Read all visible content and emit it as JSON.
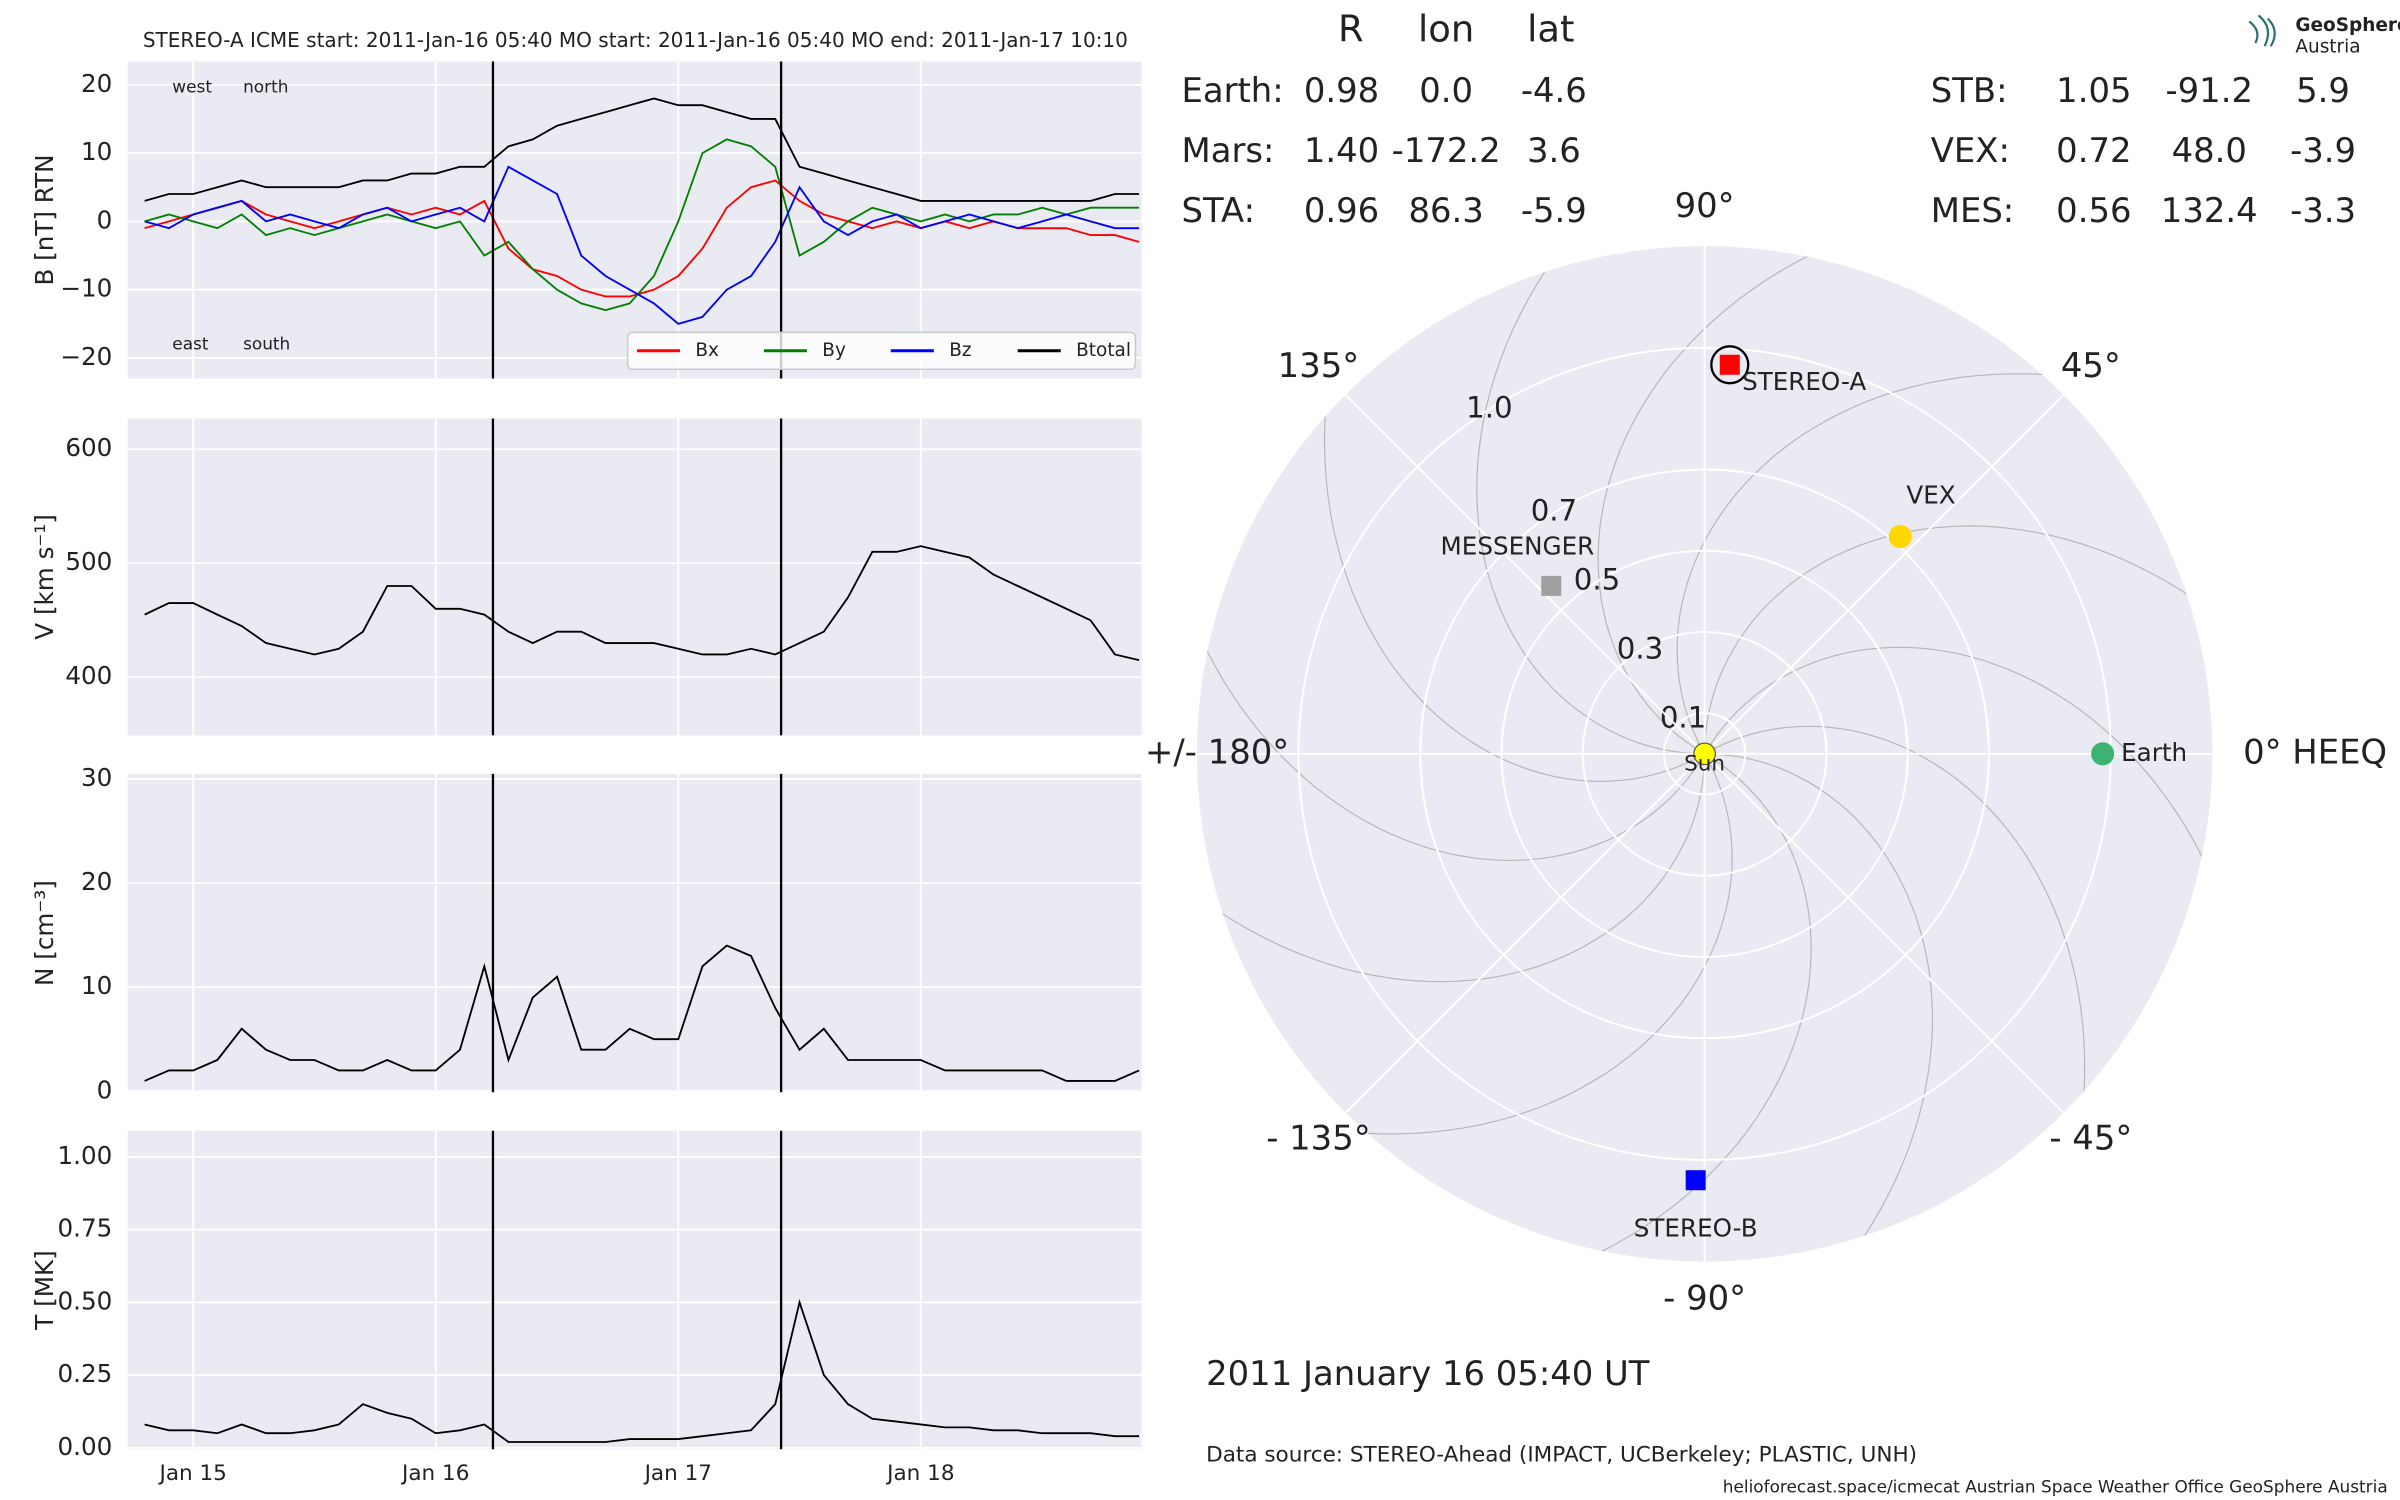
{
  "logo": {
    "line1": "GeoSphere",
    "line2": "Austria"
  },
  "date_label": "2011 January 16  05:40 UT",
  "data_source": "Data source: STEREO-Ahead (IMPACT, UCBerkeley; PLASTIC, UNH)",
  "footer": "helioforecast.space/icmecat   Austrian Space Weather Office   GeoSphere Austria",
  "chart_data": [
    {
      "type": "line",
      "title": "STEREO-A    ICME start: 2011-Jan-16 05:40    MO start: 2011-Jan-16 05:40    MO end: 2011-Jan-17 10:10",
      "ylabel": "B [nT] RTN",
      "x": [
        14.8,
        14.9,
        15.0,
        15.1,
        15.2,
        15.3,
        15.4,
        15.5,
        15.6,
        15.7,
        15.8,
        15.9,
        16.0,
        16.1,
        16.2,
        16.3,
        16.4,
        16.5,
        16.6,
        16.7,
        16.8,
        16.9,
        17.0,
        17.1,
        17.2,
        17.3,
        17.4,
        17.5,
        17.6,
        17.7,
        17.8,
        17.9,
        18.0,
        18.1,
        18.2,
        18.3,
        18.4,
        18.5,
        18.6,
        18.7,
        18.8,
        18.9
      ],
      "series": [
        {
          "name": "Bx",
          "color": "#ff0000",
          "values": [
            -1,
            0,
            1,
            2,
            3,
            1,
            0,
            -1,
            0,
            1,
            2,
            1,
            2,
            1,
            3,
            -4,
            -7,
            -8,
            -10,
            -11,
            -11,
            -10,
            -8,
            -4,
            2,
            5,
            6,
            3,
            1,
            0,
            -1,
            0,
            -1,
            0,
            -1,
            0,
            -1,
            -1,
            -1,
            -2,
            -2,
            -3
          ]
        },
        {
          "name": "By",
          "color": "#008000",
          "values": [
            0,
            1,
            0,
            -1,
            1,
            -2,
            -1,
            -2,
            -1,
            0,
            1,
            0,
            -1,
            0,
            -5,
            -3,
            -7,
            -10,
            -12,
            -13,
            -12,
            -8,
            0,
            10,
            12,
            11,
            8,
            -5,
            -3,
            0,
            2,
            1,
            0,
            1,
            0,
            1,
            1,
            2,
            1,
            2,
            2,
            2
          ]
        },
        {
          "name": "Bz",
          "color": "#0000ff",
          "values": [
            0,
            -1,
            1,
            2,
            3,
            0,
            1,
            0,
            -1,
            1,
            2,
            0,
            1,
            2,
            0,
            8,
            6,
            4,
            -5,
            -8,
            -10,
            -12,
            -15,
            -14,
            -10,
            -8,
            -3,
            5,
            0,
            -2,
            0,
            1,
            -1,
            0,
            1,
            0,
            -1,
            0,
            1,
            0,
            -1,
            -1
          ]
        },
        {
          "name": "Btotal",
          "color": "#000000",
          "values": [
            3,
            4,
            4,
            5,
            6,
            5,
            5,
            5,
            5,
            6,
            6,
            7,
            7,
            8,
            8,
            11,
            12,
            14,
            15,
            16,
            17,
            18,
            17,
            17,
            16,
            15,
            15,
            8,
            7,
            6,
            5,
            4,
            3,
            3,
            3,
            3,
            3,
            3,
            3,
            3,
            4,
            4
          ]
        }
      ],
      "xlim": [
        14.73,
        18.91
      ],
      "ylim": [
        -23,
        23.4
      ],
      "yticks": [
        {
          "value": -20,
          "label": "−20"
        },
        {
          "value": -10,
          "label": "−10"
        },
        0,
        10,
        20
      ],
      "xticks": [
        15,
        16,
        17,
        18
      ],
      "vlines": [
        16.236,
        17.424
      ],
      "grid": true,
      "legend": "lower right",
      "annotations": [
        {
          "text": "west",
          "color": "#008000"
        },
        {
          "text": "north",
          "color": "#0000ff"
        },
        {
          "text": "east",
          "color": "#008000"
        },
        {
          "text": "south",
          "color": "#0000ff"
        }
      ]
    },
    {
      "type": "line",
      "ylabel": "V [km s⁻¹]",
      "color": "#000000",
      "x": [
        14.8,
        14.9,
        15.0,
        15.1,
        15.2,
        15.3,
        15.4,
        15.5,
        15.6,
        15.7,
        15.8,
        15.9,
        16.0,
        16.1,
        16.2,
        16.3,
        16.4,
        16.5,
        16.6,
        16.7,
        16.8,
        16.9,
        17.0,
        17.1,
        17.2,
        17.3,
        17.4,
        17.5,
        17.6,
        17.7,
        17.8,
        17.9,
        18.0,
        18.1,
        18.2,
        18.3,
        18.4,
        18.5,
        18.6,
        18.7,
        18.8,
        18.9
      ],
      "values": [
        455,
        465,
        465,
        455,
        445,
        430,
        425,
        420,
        425,
        440,
        480,
        480,
        460,
        460,
        455,
        440,
        430,
        440,
        440,
        430,
        430,
        430,
        425,
        420,
        420,
        425,
        420,
        430,
        440,
        470,
        510,
        510,
        515,
        510,
        505,
        490,
        480,
        470,
        460,
        450,
        420,
        415
      ],
      "xlim": [
        14.73,
        18.91
      ],
      "ylim": [
        349,
        627
      ],
      "yticks": [
        400,
        500,
        600
      ],
      "xticks": [
        15,
        16,
        17,
        18
      ],
      "vlines": [
        16.236,
        17.424
      ],
      "grid": true
    },
    {
      "type": "line",
      "ylabel": "N [cm⁻³]",
      "color": "#000000",
      "x": [
        14.8,
        14.9,
        15.0,
        15.1,
        15.2,
        15.3,
        15.4,
        15.5,
        15.6,
        15.7,
        15.8,
        15.9,
        16.0,
        16.1,
        16.2,
        16.3,
        16.4,
        16.5,
        16.6,
        16.7,
        16.8,
        16.9,
        17.0,
        17.1,
        17.2,
        17.3,
        17.4,
        17.5,
        17.6,
        17.7,
        17.8,
        17.9,
        18.0,
        18.1,
        18.2,
        18.3,
        18.4,
        18.5,
        18.6,
        18.7,
        18.8,
        18.9
      ],
      "values": [
        1,
        2,
        2,
        3,
        6,
        4,
        3,
        3,
        2,
        2,
        3,
        2,
        2,
        4,
        12,
        3,
        9,
        11,
        4,
        4,
        6,
        5,
        5,
        12,
        14,
        13,
        8,
        4,
        6,
        3,
        3,
        3,
        3,
        2,
        2,
        2,
        2,
        2,
        1,
        1,
        1,
        2
      ],
      "xlim": [
        14.73,
        18.91
      ],
      "ylim": [
        -0.1,
        30.5
      ],
      "yticks": [
        0,
        10,
        20,
        30
      ],
      "xticks": [
        15,
        16,
        17,
        18
      ],
      "vlines": [
        16.236,
        17.424
      ],
      "grid": true
    },
    {
      "type": "line",
      "ylabel": "T [MK]",
      "color": "#000000",
      "x": [
        14.8,
        14.9,
        15.0,
        15.1,
        15.2,
        15.3,
        15.4,
        15.5,
        15.6,
        15.7,
        15.8,
        15.9,
        16.0,
        16.1,
        16.2,
        16.3,
        16.4,
        16.5,
        16.6,
        16.7,
        16.8,
        16.9,
        17.0,
        17.1,
        17.2,
        17.3,
        17.4,
        17.5,
        17.6,
        17.7,
        17.8,
        17.9,
        18.0,
        18.1,
        18.2,
        18.3,
        18.4,
        18.5,
        18.6,
        18.7,
        18.8,
        18.9
      ],
      "values": [
        0.08,
        0.06,
        0.06,
        0.05,
        0.08,
        0.05,
        0.05,
        0.06,
        0.08,
        0.15,
        0.12,
        0.1,
        0.05,
        0.06,
        0.08,
        0.02,
        0.02,
        0.02,
        0.02,
        0.02,
        0.03,
        0.03,
        0.03,
        0.04,
        0.05,
        0.06,
        0.15,
        0.5,
        0.25,
        0.15,
        0.1,
        0.09,
        0.08,
        0.07,
        0.07,
        0.06,
        0.06,
        0.05,
        0.05,
        0.05,
        0.04,
        0.04
      ],
      "xlim": [
        14.73,
        18.91
      ],
      "ylim": [
        -0.005,
        1.09
      ],
      "yticks": [
        {
          "value": 0,
          "label": "0.00"
        },
        {
          "value": 0.25,
          "label": "0.25"
        },
        {
          "value": 0.5,
          "label": "0.50"
        },
        {
          "value": 0.75,
          "label": "0.75"
        },
        {
          "value": 1,
          "label": "1.00"
        }
      ],
      "xticks": [
        {
          "value": 15,
          "label": "Jan 15"
        },
        {
          "value": 16,
          "label": "Jan 16"
        },
        {
          "value": 17,
          "label": "Jan 17"
        },
        {
          "value": 18,
          "label": "Jan 18"
        }
      ],
      "vlines": [
        16.236,
        17.424
      ],
      "grid": true
    },
    {
      "type": "polar",
      "header": [
        "R",
        "lon",
        "lat"
      ],
      "rlim": [
        0,
        1.25
      ],
      "rticks": [
        0.1,
        0.3,
        0.5,
        0.7,
        {
          "value": 1,
          "label": "1.0"
        }
      ],
      "thetaticks": [
        {
          "value": 90,
          "label": "90°"
        },
        {
          "value": 45,
          "label": "45°"
        },
        {
          "value": 0,
          "label": "0° HEEQ"
        },
        {
          "value": -45,
          "label": "- 45°"
        },
        {
          "value": -90,
          "label": "- 90°"
        },
        {
          "value": -135,
          "label": "- 135°"
        },
        {
          "value": 180,
          "label": "+/- 180°"
        },
        {
          "value": 135,
          "label": "135°"
        }
      ],
      "sun_label": "Sun",
      "bodies": [
        {
          "name": "Earth:",
          "color": "#3cb371",
          "values": [
            0.98,
            0,
            -4.6
          ],
          "value_labels": [
            "0.98",
            "0.0",
            "-4.6"
          ],
          "marker": "circle",
          "marker_color": "#3cb371",
          "marker_label": "Earth"
        },
        {
          "name": "Mars:",
          "color": "#ff6347",
          "values": [
            1.4,
            -172.2,
            3.6
          ],
          "value_labels": [
            "1.40",
            "-172.2",
            "3.6"
          ]
        },
        {
          "name": "STA:",
          "color": "#ff0000",
          "values": [
            0.96,
            86.3,
            -5.9
          ],
          "value_labels": [
            "0.96",
            "86.3",
            "-5.9"
          ],
          "marker": "square",
          "marker_color": "#ff0000",
          "marker_label": "STEREO-A",
          "ring": true
        },
        {
          "name": "STB:",
          "color": "#0000ff",
          "values": [
            1.05,
            -91.2,
            5.9
          ],
          "value_labels": [
            "1.05",
            "-91.2",
            "5.9"
          ],
          "marker": "square",
          "marker_color": "#0000ff",
          "marker_label": "STEREO-B"
        },
        {
          "name": "VEX:",
          "color": "#ffa500",
          "values": [
            0.72,
            48,
            -3.9
          ],
          "value_labels": [
            "0.72",
            "48.0",
            "-3.9"
          ],
          "marker": "circle",
          "marker_color": "#ffd700",
          "marker_label": "VEX"
        },
        {
          "name": "MES:",
          "color": "#a9a9a9",
          "values": [
            0.56,
            132.4,
            -3.3
          ],
          "value_labels": [
            "0.56",
            "132.4",
            "-3.3"
          ],
          "marker": "square",
          "marker_color": "#a0a0a0",
          "marker_label": "MESSENGER"
        }
      ]
    }
  ]
}
